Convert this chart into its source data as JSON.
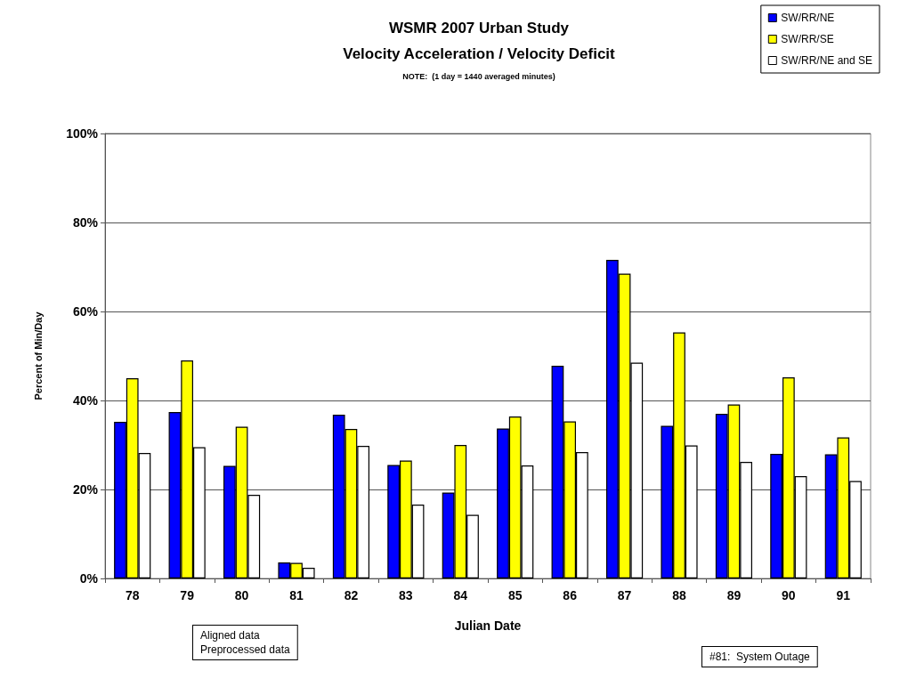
{
  "chart_data": {
    "type": "bar",
    "title": "WSMR 2007 Urban Study",
    "subtitle": "Velocity Acceleration / Velocity Deficit",
    "xlabel": "Julian Date",
    "ylabel": "Percent of Min/Day",
    "annotations": [
      "NOTE:  (1 day = 1440 averaged minutes)",
      "Aligned data",
      "Preprocessed data",
      "#81:  System Outage"
    ],
    "categories": [
      "78",
      "79",
      "80",
      "81",
      "82",
      "83",
      "84",
      "85",
      "86",
      "87",
      "88",
      "89",
      "90",
      "91"
    ],
    "series": [
      {
        "name": "SW/RR/NE",
        "color": "#0000ff",
        "values": [
          35.2,
          37.4,
          25.3,
          3.6,
          36.8,
          25.5,
          19.3,
          33.7,
          47.8,
          71.6,
          34.3,
          37.0,
          28.0,
          27.9
        ]
      },
      {
        "name": "SW/RR/SE",
        "color": "#ffff00",
        "values": [
          45.0,
          49.0,
          34.1,
          3.5,
          33.6,
          26.5,
          30.0,
          36.4,
          35.3,
          68.5,
          55.3,
          39.1,
          45.2,
          31.7
        ]
      },
      {
        "name": "SW/RR/NE and SE",
        "color": "#ffffff",
        "values": [
          28.2,
          29.5,
          18.8,
          2.4,
          29.8,
          16.6,
          14.3,
          25.4,
          28.4,
          48.5,
          29.9,
          26.2,
          23.0,
          21.9
        ]
      }
    ],
    "ylim": [
      0,
      100
    ],
    "yticks": [
      {
        "value": 0,
        "label": "0%"
      },
      {
        "value": 20,
        "label": "20%"
      },
      {
        "value": 40,
        "label": "40%"
      },
      {
        "value": 60,
        "label": "60%"
      },
      {
        "value": 80,
        "label": "80%"
      },
      {
        "value": 100,
        "label": "100%"
      }
    ],
    "grid": "y",
    "legend": "top right"
  }
}
